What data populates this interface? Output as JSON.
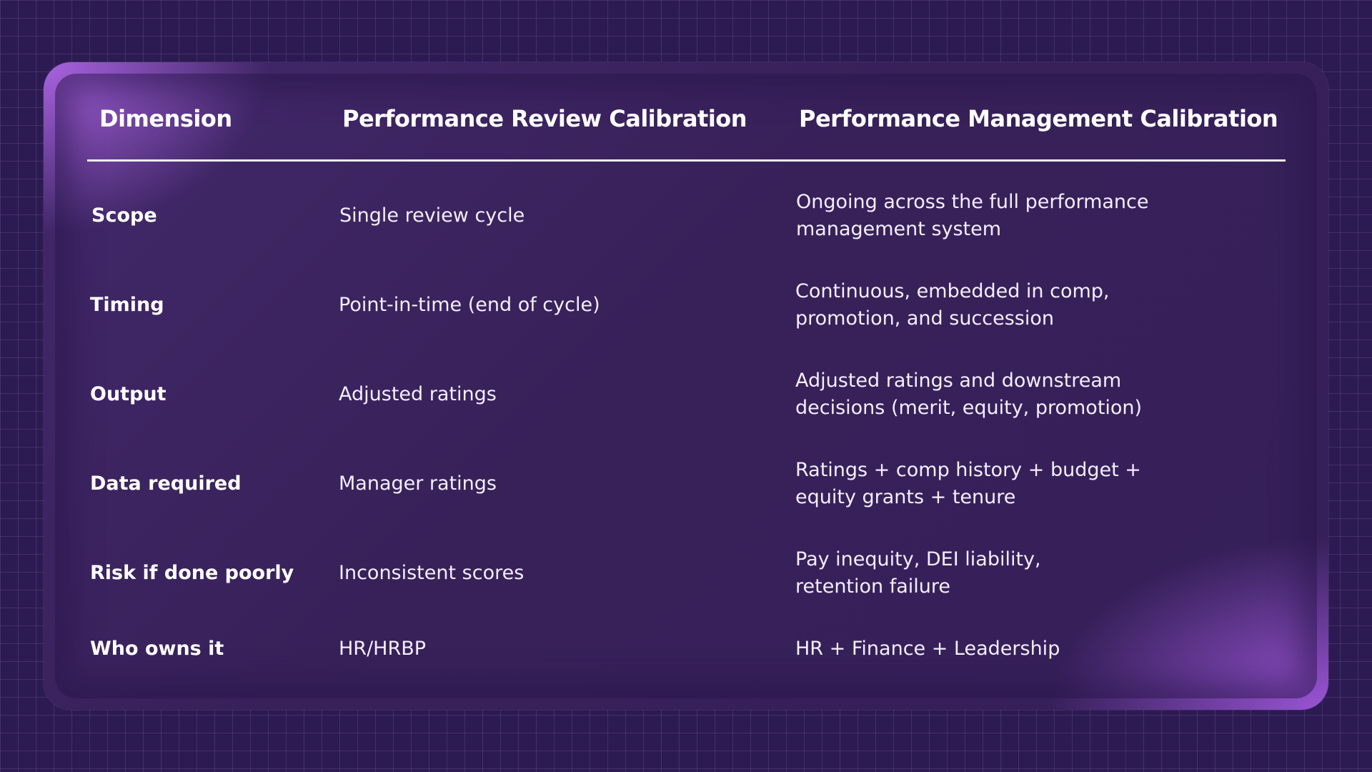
{
  "table": {
    "headers": [
      "Dimension",
      "Performance Review Calibration",
      "Performance Management Calibration"
    ],
    "rows": [
      {
        "dimension": "Scope",
        "review": "Single review cycle",
        "management_lines": [
          "Ongoing across the full performance",
          "management system"
        ]
      },
      {
        "dimension": "Timing",
        "review": "Point-in-time (end of cycle)",
        "management_lines": [
          "Continuous, embedded in comp,",
          "promotion, and succession"
        ]
      },
      {
        "dimension": "Output",
        "review": "Adjusted ratings",
        "management_lines": [
          "Adjusted ratings and downstream",
          "decisions (merit, equity, promotion)"
        ]
      },
      {
        "dimension": "Data required",
        "review": "Manager ratings",
        "management_lines": [
          "Ratings + comp history + budget +",
          "equity grants + tenure"
        ]
      },
      {
        "dimension": "Risk if done poorly",
        "review": "Inconsistent scores",
        "management_lines": [
          "Pay inequity, DEI liability,",
          "retention failure"
        ]
      },
      {
        "dimension": "Who owns it",
        "review": "HR/HRBP",
        "management_lines": [
          "HR + Finance + Leadership"
        ]
      }
    ]
  },
  "colors": {
    "background": "#2c1a52",
    "card": "#3b2562",
    "accent_glow": "#a058dc",
    "text": "#ffffff"
  }
}
